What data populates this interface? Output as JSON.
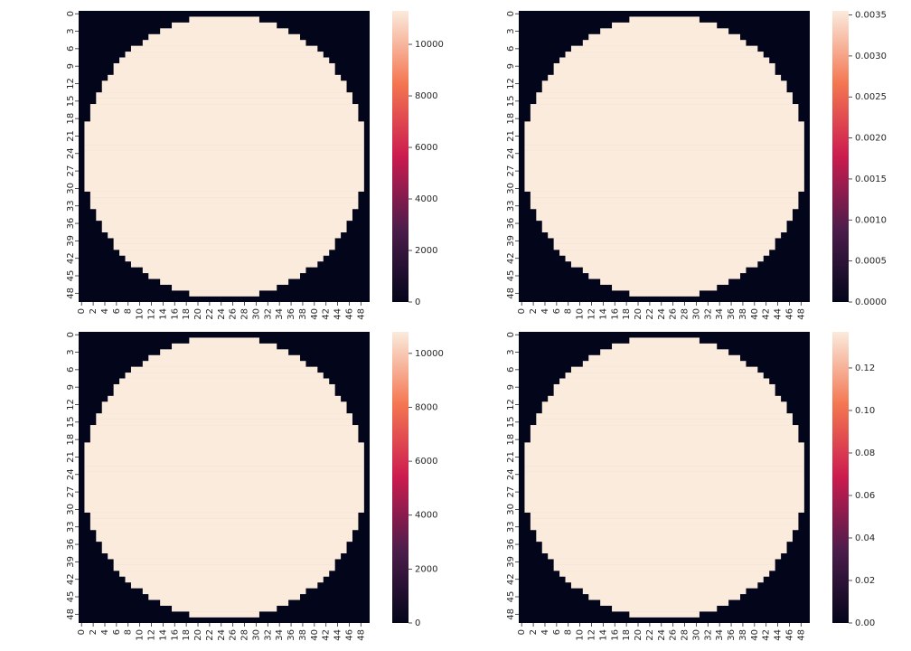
{
  "chart_data": [
    {
      "type": "heatmap",
      "n": 50,
      "radius": 16,
      "value_inside": 11300,
      "value_outside": 0,
      "colorbar": {
        "min": 0,
        "max": 11300,
        "ticks": [
          0,
          2000,
          4000,
          6000,
          8000,
          10000
        ]
      },
      "x_tick_labels": [
        "0",
        "2",
        "4",
        "6",
        "8",
        "10",
        "12",
        "14",
        "16",
        "18",
        "20",
        "22",
        "24",
        "26",
        "28",
        "30",
        "32",
        "34",
        "36",
        "38",
        "40",
        "42",
        "44",
        "46",
        "48"
      ],
      "y_tick_labels": [
        "0",
        "3",
        "6",
        "9",
        "12",
        "15",
        "18",
        "21",
        "24",
        "27",
        "30",
        "33",
        "36",
        "39",
        "42",
        "45",
        "48"
      ]
    },
    {
      "type": "heatmap",
      "n": 50,
      "radius": 16,
      "value_inside": 0.00355,
      "value_outside": 0,
      "colorbar": {
        "min": 0,
        "max": 0.00355,
        "ticks": [
          "0.0000",
          "0.0005",
          "0.0010",
          "0.0015",
          "0.0020",
          "0.0025",
          "0.0030",
          "0.0035"
        ]
      },
      "x_tick_labels": [
        "0",
        "2",
        "4",
        "6",
        "8",
        "10",
        "12",
        "14",
        "16",
        "18",
        "20",
        "22",
        "24",
        "26",
        "28",
        "30",
        "32",
        "34",
        "36",
        "38",
        "40",
        "42",
        "44",
        "46",
        "48"
      ],
      "y_tick_labels": [
        "0",
        "3",
        "6",
        "9",
        "12",
        "15",
        "18",
        "21",
        "24",
        "27",
        "30",
        "33",
        "36",
        "39",
        "42",
        "45",
        "48"
      ]
    },
    {
      "type": "heatmap",
      "n": 50,
      "radius": 16,
      "value_inside": 10800,
      "value_outside": 0,
      "colorbar": {
        "min": 0,
        "max": 10800,
        "ticks": [
          0,
          2000,
          4000,
          6000,
          8000,
          10000
        ]
      },
      "x_tick_labels": [
        "0",
        "2",
        "4",
        "6",
        "8",
        "10",
        "12",
        "14",
        "16",
        "18",
        "20",
        "22",
        "24",
        "26",
        "28",
        "30",
        "32",
        "34",
        "36",
        "38",
        "40",
        "42",
        "44",
        "46",
        "48"
      ],
      "y_tick_labels": [
        "0",
        "3",
        "6",
        "9",
        "12",
        "15",
        "18",
        "21",
        "24",
        "27",
        "30",
        "33",
        "36",
        "39",
        "42",
        "45",
        "48"
      ]
    },
    {
      "type": "heatmap",
      "n": 50,
      "radius": 16,
      "value_inside": 0.137,
      "value_outside": 0,
      "colorbar": {
        "min": 0,
        "max": 0.137,
        "ticks": [
          "0.00",
          "0.02",
          "0.04",
          "0.06",
          "0.08",
          "0.10",
          "0.12"
        ]
      },
      "x_tick_labels": [
        "0",
        "2",
        "4",
        "6",
        "8",
        "10",
        "12",
        "14",
        "16",
        "18",
        "20",
        "22",
        "24",
        "26",
        "28",
        "30",
        "32",
        "34",
        "36",
        "38",
        "40",
        "42",
        "44",
        "46",
        "48"
      ],
      "y_tick_labels": [
        "0",
        "3",
        "6",
        "9",
        "12",
        "15",
        "18",
        "21",
        "24",
        "27",
        "30",
        "33",
        "36",
        "39",
        "42",
        "45",
        "48"
      ]
    }
  ],
  "colors": {
    "low": "#03051a",
    "mid_low": "#4c1d4b",
    "mid": "#cb1b4f",
    "mid_high": "#f37651",
    "high": "#faebdd"
  }
}
